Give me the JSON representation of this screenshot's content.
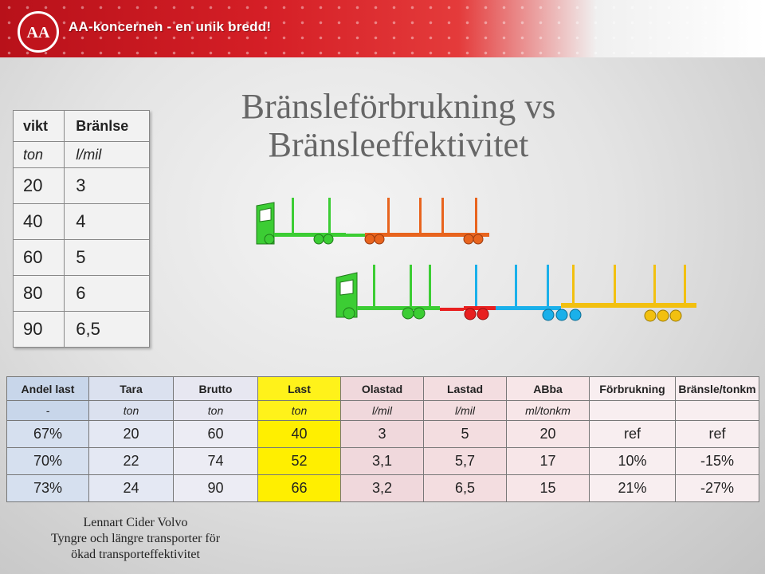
{
  "banner": {
    "slogan": "AA-koncernen - en unik bredd!",
    "logo_text": "AA",
    "colors": {
      "primary": "#c8161e",
      "text": "#ffffff"
    }
  },
  "title": {
    "line1": "Bränsleförbrukning vs",
    "line2": "Bränsleeffektivitet"
  },
  "small_table": {
    "headers": [
      "vikt",
      "Bränlse"
    ],
    "units": [
      "ton",
      "l/mil"
    ],
    "rows": [
      [
        "20",
        "3"
      ],
      [
        "40",
        "4"
      ],
      [
        "60",
        "5"
      ],
      [
        "80",
        "6"
      ],
      [
        "90",
        "6,5"
      ]
    ]
  },
  "trucks": {
    "icon": "timber-truck-combination-icon",
    "colors": {
      "tractor": "#33cc33",
      "dolly": "#e84b1e",
      "trailer1": "#e8641e",
      "trailer2_red": "#e82020",
      "trailer3_blue": "#1ab0ea",
      "trailer4_yellow": "#f2c010"
    }
  },
  "big_table": {
    "headers": [
      "Andel last",
      "Tara",
      "Brutto",
      "Last",
      "Olastad",
      "Lastad",
      "ABba",
      "Förbrukning",
      "Bränsle/tonkm"
    ],
    "units": [
      "-",
      "ton",
      "ton",
      "ton",
      "l/mil",
      "l/mil",
      "ml/tonkm",
      "",
      ""
    ],
    "rows": [
      [
        "67%",
        "20",
        "60",
        "40",
        "3",
        "5",
        "20",
        "ref",
        "ref"
      ],
      [
        "70%",
        "22",
        "74",
        "52",
        "3,1",
        "5,7",
        "17",
        "10%",
        "-15%"
      ],
      [
        "73%",
        "24",
        "90",
        "66",
        "3,2",
        "6,5",
        "15",
        "21%",
        "-27%"
      ]
    ]
  },
  "footer": {
    "line1": "Lennart Cider Volvo",
    "line2": "Tyngre och längre transporter för",
    "line3": "ökad transporteffektivitet"
  }
}
